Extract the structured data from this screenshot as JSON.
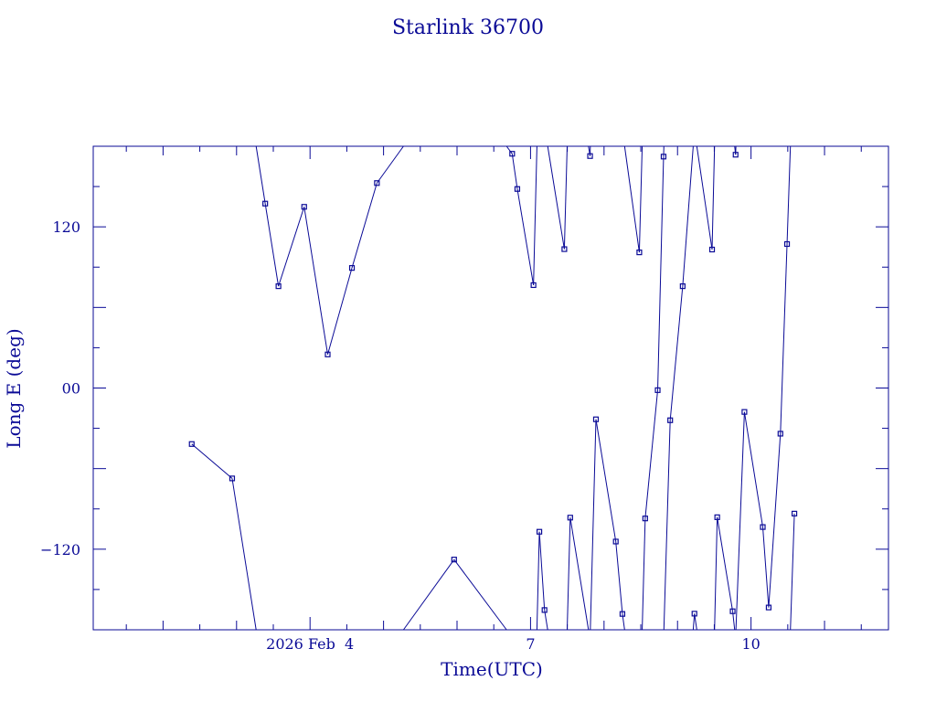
{
  "colors": {
    "ink": "#0a0a96",
    "background": "#ffffff"
  },
  "chart_data": {
    "type": "line",
    "title": "Starlink 36700",
    "xlabel": "Time(UTC)",
    "ylabel": "Long E (deg)",
    "x_unit": "days (2026 Feb)",
    "xlim": [
      1.05,
      11.87
    ],
    "ylim": [
      -180,
      180
    ],
    "y_ticks": [
      {
        "value": 120,
        "label": "120"
      },
      {
        "value": 0,
        "label": "00"
      },
      {
        "value": -120,
        "label": "−120"
      }
    ],
    "x_ticks": [
      {
        "value": 4,
        "label": "2026 Feb  4"
      },
      {
        "value": 7,
        "label": "7"
      },
      {
        "value": 10,
        "label": "10"
      }
    ],
    "marker": "open-square",
    "grid": false,
    "points": [
      [
        2.39,
        -41.7
      ],
      [
        2.94,
        -67.3
      ],
      [
        3.39,
        137.3
      ],
      [
        3.57,
        75.8
      ],
      [
        3.92,
        134.9
      ],
      [
        4.24,
        25.0
      ],
      [
        4.57,
        89.4
      ],
      [
        4.91,
        152.6
      ],
      [
        5.96,
        -127.7
      ],
      [
        6.75,
        174.4
      ],
      [
        6.82,
        148.2
      ],
      [
        7.04,
        76.6
      ],
      [
        7.12,
        -107.0
      ],
      [
        7.19,
        -165.3
      ],
      [
        7.46,
        103.4
      ],
      [
        7.54,
        -96.5
      ],
      [
        7.81,
        172.7
      ],
      [
        7.89,
        -23.3
      ],
      [
        8.16,
        -114.3
      ],
      [
        8.25,
        -168.2
      ],
      [
        8.48,
        101.0
      ],
      [
        8.56,
        -97.1
      ],
      [
        8.73,
        -1.6
      ],
      [
        8.81,
        172.3
      ],
      [
        8.9,
        -24.0
      ],
      [
        9.07,
        75.8
      ],
      [
        9.23,
        -168.0
      ],
      [
        9.47,
        103.1
      ],
      [
        9.54,
        -96.2
      ],
      [
        9.75,
        -166.2
      ],
      [
        9.79,
        173.7
      ],
      [
        9.91,
        -17.8
      ],
      [
        10.16,
        -103.5
      ],
      [
        10.24,
        -163.4
      ],
      [
        10.4,
        -34.0
      ],
      [
        10.49,
        107.2
      ],
      [
        10.59,
        -93.5
      ]
    ]
  }
}
